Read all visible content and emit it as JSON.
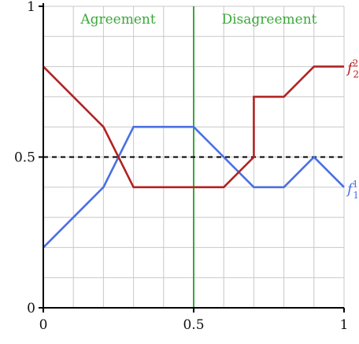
{
  "colors": {
    "grid": "#c8c8c8",
    "axis": "#000000",
    "divider": "#3aa83a",
    "region_text": "#3aa83a",
    "threshold": "#000000",
    "f1": "#4a6fe3",
    "f2": "#b22222"
  },
  "regions": {
    "agreement": "Agreement",
    "disagreement": "Disagreement"
  },
  "chart_data": {
    "type": "line",
    "xlim": [
      0,
      1
    ],
    "ylim": [
      0,
      1
    ],
    "grid": true,
    "xticks": [
      {
        "v": 0,
        "label": "0"
      },
      {
        "v": 0.5,
        "label": "0.5"
      },
      {
        "v": 1,
        "label": "1"
      }
    ],
    "yticks": [
      {
        "v": 0,
        "label": "0"
      },
      {
        "v": 0.5,
        "label": "0.5"
      },
      {
        "v": 1,
        "label": "1"
      }
    ],
    "threshold_y": 0.5,
    "divider_x": 0.5,
    "series": [
      {
        "key": "f1",
        "label_base": "f",
        "label_sub": "1",
        "label_sup": "1",
        "x": [
          0,
          0.2,
          0.3,
          0.5,
          0.6,
          0.7,
          0.8,
          0.9,
          1.0
        ],
        "y": [
          0.2,
          0.4,
          0.6,
          0.6,
          0.5,
          0.4,
          0.4,
          0.5,
          0.4
        ]
      },
      {
        "key": "f2",
        "label_base": "f",
        "label_sub": "2",
        "label_sup": "2",
        "x": [
          0,
          0.2,
          0.3,
          0.6,
          0.7,
          0.7,
          0.8,
          0.9,
          1.0
        ],
        "y": [
          0.8,
          0.6,
          0.4,
          0.4,
          0.5,
          0.7,
          0.7,
          0.8,
          0.8
        ]
      }
    ]
  }
}
